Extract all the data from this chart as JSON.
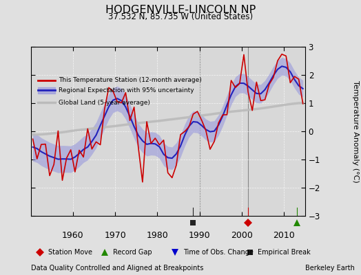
{
  "title": "HODGENVILLE-LINCOLN NP",
  "subtitle": "37.532 N, 85.735 W (United States)",
  "xlabel_left": "Data Quality Controlled and Aligned at Breakpoints",
  "xlabel_right": "Berkeley Earth",
  "ylabel": "Temperature Anomaly (°C)",
  "ylim": [
    -3,
    3
  ],
  "xlim": [
    1950,
    2015
  ],
  "xticks": [
    1960,
    1970,
    1980,
    1990,
    2000,
    2010
  ],
  "yticks": [
    -3,
    -2,
    -1,
    0,
    1,
    2,
    3
  ],
  "background_color": "#e0e0e0",
  "plot_background": "#d8d8d8",
  "red_color": "#cc0000",
  "blue_color": "#2222bb",
  "blue_fill_color": "#9999dd",
  "gray_color": "#bbbbbb",
  "station_move_color": "#cc0000",
  "record_gap_color": "#228800",
  "obs_change_color": "#0000cc",
  "empirical_break_color": "#222222",
  "vline_color": "#888888",
  "events": {
    "station_move": [
      2001.5
    ],
    "record_gap": [
      2013.0
    ],
    "obs_change": [],
    "empirical_break": [
      1988.5
    ]
  },
  "vlines": [
    1990.0,
    2001.5
  ],
  "seed": 123
}
